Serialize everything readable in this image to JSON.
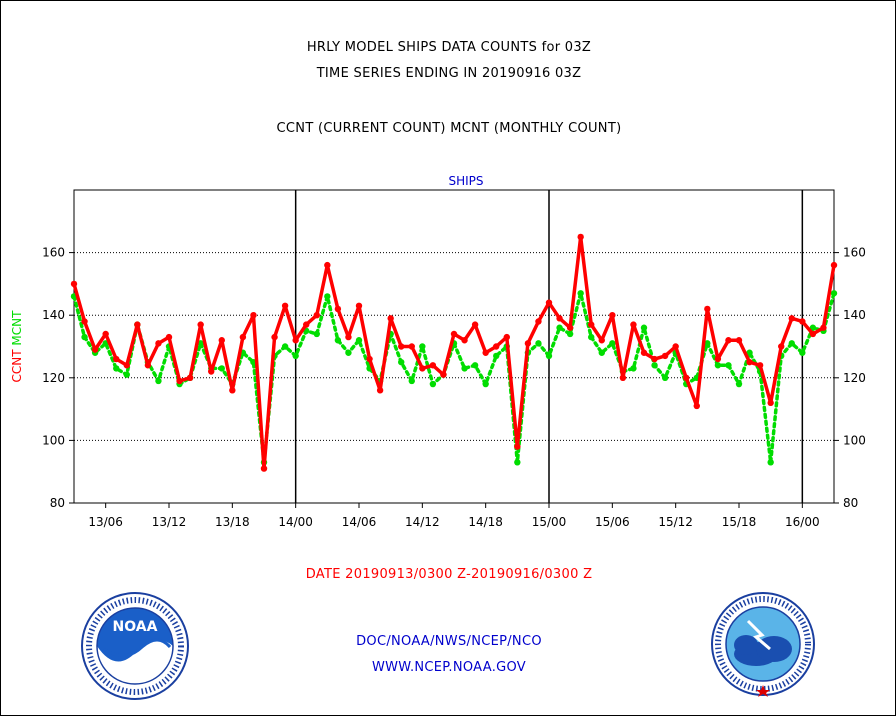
{
  "header": {
    "title_line1": "HRLY MODEL SHIPS DATA COUNTS for 03Z",
    "title_line2": "TIME SERIES ENDING IN 20190916 03Z",
    "subtitle": "CCNT (CURRENT COUNT) MCNT (MONTHLY COUNT)"
  },
  "footer": {
    "date_range": "DATE 20190913/0300 Z-20190916/0300 Z",
    "org": "DOC/NOAA/NWS/NCEP/NCO",
    "url": "WWW.NCEP.NOAA.GOV",
    "left_logo": {
      "icon": "noaa-logo-icon",
      "text": "NOAA",
      "ring_text": "NATIONAL OCEANIC AND ATMOSPHERIC ADMINISTRATION · U.S. DEPARTMENT OF COMMERCE"
    },
    "right_logo": {
      "icon": "nws-logo-icon",
      "ring_text": "NATIONAL WEATHER SERVICE"
    }
  },
  "colors": {
    "ccnt": "#ff0000",
    "mcnt": "#00dd00",
    "title": "#0000cc",
    "date_text": "#ff0000",
    "footer_text": "#0000cc"
  },
  "chart_data": {
    "type": "line",
    "title": "SHIPS",
    "ylabel_left": "CCNT",
    "ylabel_left_second": "MCNT",
    "ylim": [
      80,
      180
    ],
    "yticks": [
      80,
      100,
      120,
      140,
      160
    ],
    "grid": true,
    "xlim": [
      0,
      72
    ],
    "x_tick_labels": [
      {
        "x": 3,
        "label": "13/06"
      },
      {
        "x": 9,
        "label": "13/12"
      },
      {
        "x": 15,
        "label": "13/18"
      },
      {
        "x": 21,
        "label": "14/00"
      },
      {
        "x": 27,
        "label": "14/06"
      },
      {
        "x": 33,
        "label": "14/12"
      },
      {
        "x": 39,
        "label": "14/18"
      },
      {
        "x": 45,
        "label": "15/00"
      },
      {
        "x": 51,
        "label": "15/06"
      },
      {
        "x": 57,
        "label": "15/12"
      },
      {
        "x": 63,
        "label": "15/18"
      },
      {
        "x": 69,
        "label": "16/00"
      }
    ],
    "day_boundaries": [
      21,
      45,
      69
    ],
    "series": [
      {
        "name": "CCNT",
        "color": "#ff0000",
        "style": "solid",
        "values": [
          150,
          138,
          129,
          134,
          126,
          124,
          137,
          124,
          131,
          133,
          119,
          120,
          137,
          122,
          132,
          116,
          133,
          140,
          91,
          133,
          143,
          132,
          137,
          140,
          156,
          142,
          133,
          143,
          126,
          116,
          139,
          130,
          130,
          123,
          124,
          121,
          134,
          132,
          137,
          128,
          130,
          133,
          98,
          131,
          138,
          144,
          139,
          136,
          165,
          137,
          132,
          140,
          120,
          137,
          128,
          126,
          127,
          130,
          120,
          111,
          142,
          126,
          132,
          132,
          125,
          124,
          112,
          130,
          139,
          138,
          134,
          136,
          156
        ]
      },
      {
        "name": "MCNT",
        "color": "#00dd00",
        "style": "dotted",
        "values": [
          146,
          133,
          128,
          131,
          123,
          121,
          137,
          125,
          119,
          130,
          118,
          120,
          131,
          123,
          123,
          118,
          128,
          125,
          93,
          127,
          130,
          127,
          135,
          134,
          146,
          132,
          128,
          132,
          123,
          119,
          134,
          125,
          119,
          130,
          118,
          121,
          131,
          123,
          124,
          118,
          127,
          130,
          93,
          128,
          131,
          127,
          136,
          134,
          147,
          133,
          128,
          131,
          122,
          123,
          136,
          124,
          120,
          128,
          118,
          120,
          131,
          124,
          124,
          118,
          128,
          122,
          93,
          127,
          131,
          128,
          136,
          135,
          147
        ]
      }
    ]
  }
}
